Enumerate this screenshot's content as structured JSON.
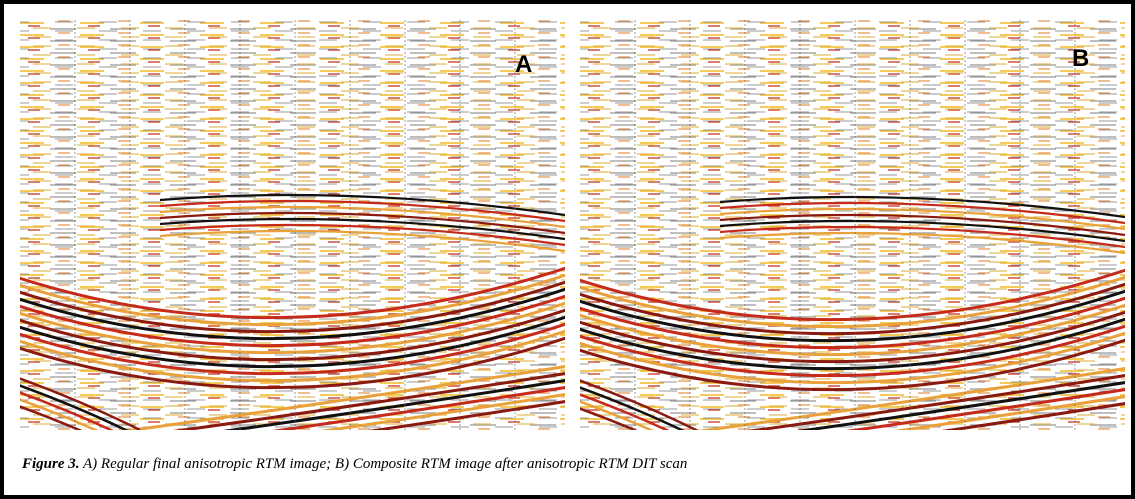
{
  "panels": [
    {
      "label": "A"
    },
    {
      "label": "B"
    }
  ],
  "caption": {
    "label": "Figure 3.",
    "text": " A) Regular final anisotropic RTM image; B) Composite RTM image after anisotropic RTM DIT scan"
  }
}
